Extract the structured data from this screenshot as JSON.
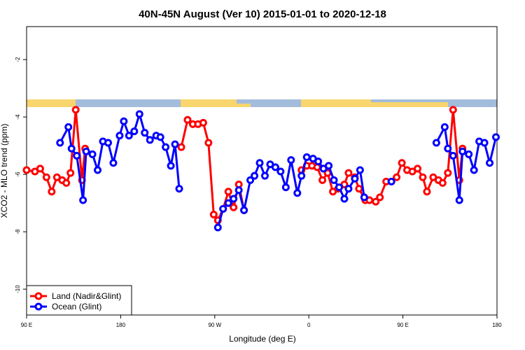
{
  "chart_data": {
    "type": "line",
    "title": "40N-45N August (Ver 10)   2015-01-01 to 2020-12-18",
    "x_label": "Longitude (deg E)",
    "y_label": "XCO2 - MLO trend (ppm)",
    "xlim": [
      90,
      540
    ],
    "ylim": [
      -10.9,
      -0.85
    ],
    "xticks": [
      {
        "value": 90,
        "label": "90 E"
      },
      180,
      {
        "value": 270,
        "label": "90 W"
      },
      {
        "value": 360,
        "label": "0"
      },
      {
        "value": 450,
        "label": "90 E"
      },
      {
        "value": 540,
        "label": "180"
      }
    ],
    "yticks": [
      -10,
      -8,
      -6,
      -4,
      -2
    ],
    "legend": "bottom-left",
    "series": [
      {
        "name": "Land (Nadir&Glint)",
        "color": "#ff0000",
        "x": [
          90,
          98,
          103,
          109,
          114,
          119,
          124,
          128,
          132,
          137,
          143,
          146,
          null,
          238,
          244,
          249,
          254,
          259,
          264,
          269,
          273,
          278,
          283,
          288,
          293,
          298,
          null,
          353,
          358,
          363,
          368,
          373,
          378,
          383,
          388,
          394,
          398,
          404,
          408,
          414,
          418,
          424,
          428,
          434,
          444,
          449,
          454,
          459,
          464,
          469,
          473,
          479,
          484,
          488,
          493,
          498,
          504,
          507
        ],
        "values": [
          -5.85,
          -5.9,
          -5.8,
          -6.1,
          -6.6,
          -6.1,
          -6.2,
          -6.3,
          -5.95,
          -3.75,
          -6.2,
          -5.1,
          null,
          -5.05,
          -4.1,
          -4.25,
          -4.25,
          -4.2,
          -4.9,
          -7.4,
          -7.6,
          -7.2,
          -6.6,
          -7.15,
          -6.35,
          -7.25,
          null,
          -5.85,
          -5.7,
          -5.7,
          -5.75,
          -6.2,
          -5.95,
          -6.6,
          -6.5,
          -6.35,
          -5.95,
          -6.1,
          -6.5,
          -6.9,
          -6.9,
          -6.95,
          -6.8,
          -6.25,
          -6.1,
          -5.6,
          -5.85,
          -5.9,
          -5.8,
          -6.1,
          -6.6,
          -6.1,
          -6.2,
          -6.3,
          -5.95,
          -3.75,
          -6.2,
          -5.1
        ]
      },
      {
        "name": "Ocean (Glint)",
        "color": "#0000ff",
        "x": [
          122,
          130,
          133,
          138,
          144,
          147,
          153,
          158,
          163,
          168,
          173,
          179,
          183,
          188,
          193,
          198,
          203,
          208,
          214,
          218,
          223,
          228,
          232,
          236,
          null,
          273,
          278,
          283,
          288,
          293,
          298,
          304,
          308,
          313,
          318,
          323,
          328,
          333,
          338,
          343,
          349,
          353,
          358,
          364,
          369,
          374,
          379,
          384,
          389,
          394,
          398,
          404,
          409,
          413,
          null,
          439,
          null,
          482,
          490,
          493,
          498,
          504,
          507,
          513,
          518,
          523,
          528,
          533,
          539
        ],
        "values": [
          -4.9,
          -4.35,
          -5.1,
          -5.35,
          -6.9,
          -5.2,
          -5.3,
          -5.85,
          -4.85,
          -4.9,
          -5.6,
          -4.65,
          -4.15,
          -4.65,
          -4.5,
          -3.9,
          -4.55,
          -4.8,
          -4.65,
          -4.7,
          -5.05,
          -5.7,
          -4.95,
          -6.5,
          null,
          -7.85,
          -7.2,
          -7.0,
          -6.85,
          -6.55,
          -7.25,
          -6.2,
          -6.05,
          -5.6,
          -6.05,
          -5.65,
          -5.75,
          -5.9,
          -6.45,
          -5.5,
          -6.65,
          -6.05,
          -5.4,
          -5.45,
          -5.55,
          -5.8,
          -5.7,
          -6.2,
          -6.45,
          -6.85,
          -6.5,
          -6.15,
          -5.85,
          -6.8,
          null,
          -6.25,
          null,
          -4.9,
          -4.35,
          -5.1,
          -5.35,
          -6.9,
          -5.2,
          -5.3,
          -5.85,
          -4.85,
          -4.9,
          -5.6,
          -4.7
        ]
      }
    ]
  }
}
